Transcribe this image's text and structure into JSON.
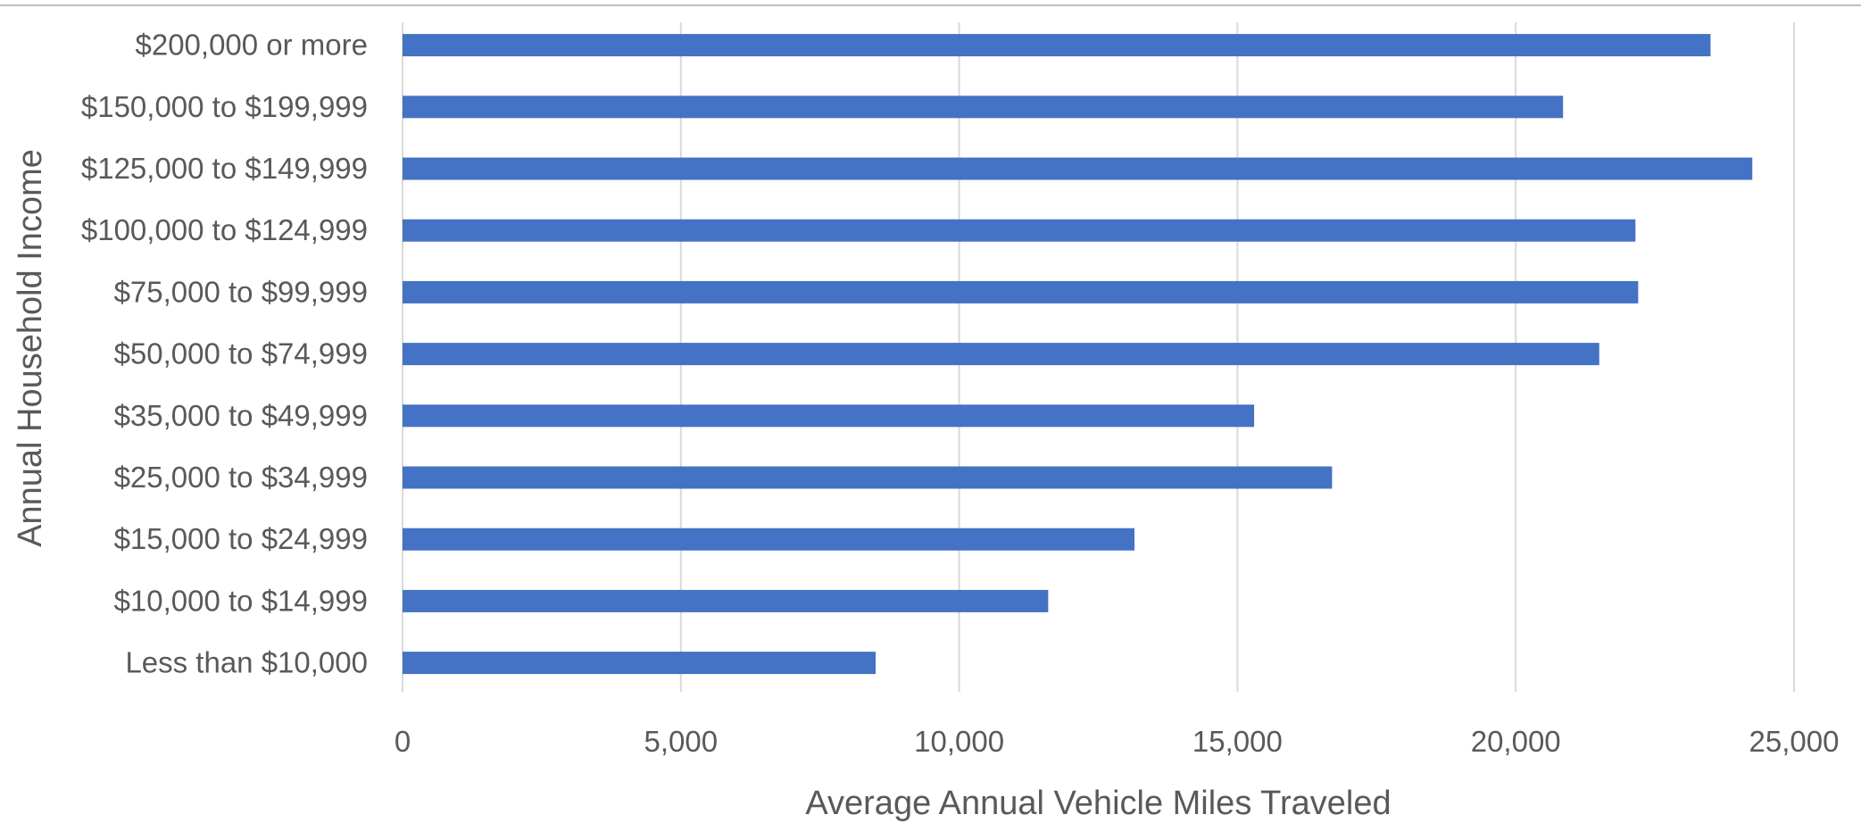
{
  "chart_data": {
    "type": "bar",
    "orientation": "horizontal",
    "xlabel": "Average Annual Vehicle Miles Traveled",
    "ylabel": "Annual Household Income",
    "xlim": [
      0,
      25000
    ],
    "x_ticks": [
      0,
      5000,
      10000,
      15000,
      20000,
      25000
    ],
    "x_tick_labels": [
      "0",
      "5,000",
      "10,000",
      "15,000",
      "20,000",
      "25,000"
    ],
    "grid": "vertical",
    "bar_color": "#4472C4",
    "categories": [
      "$200,000 or more",
      "$150,000 to $199,999",
      "$125,000 to $149,999",
      "$100,000 to $124,999",
      "$75,000 to $99,999",
      "$50,000 to $74,999",
      "$35,000 to $49,999",
      "$25,000 to $34,999",
      "$15,000 to $24,999",
      "$10,000 to $14,999",
      "Less than $10,000"
    ],
    "values": [
      23500,
      20850,
      24250,
      22150,
      22200,
      21500,
      15300,
      16700,
      13150,
      11600,
      8500
    ]
  }
}
